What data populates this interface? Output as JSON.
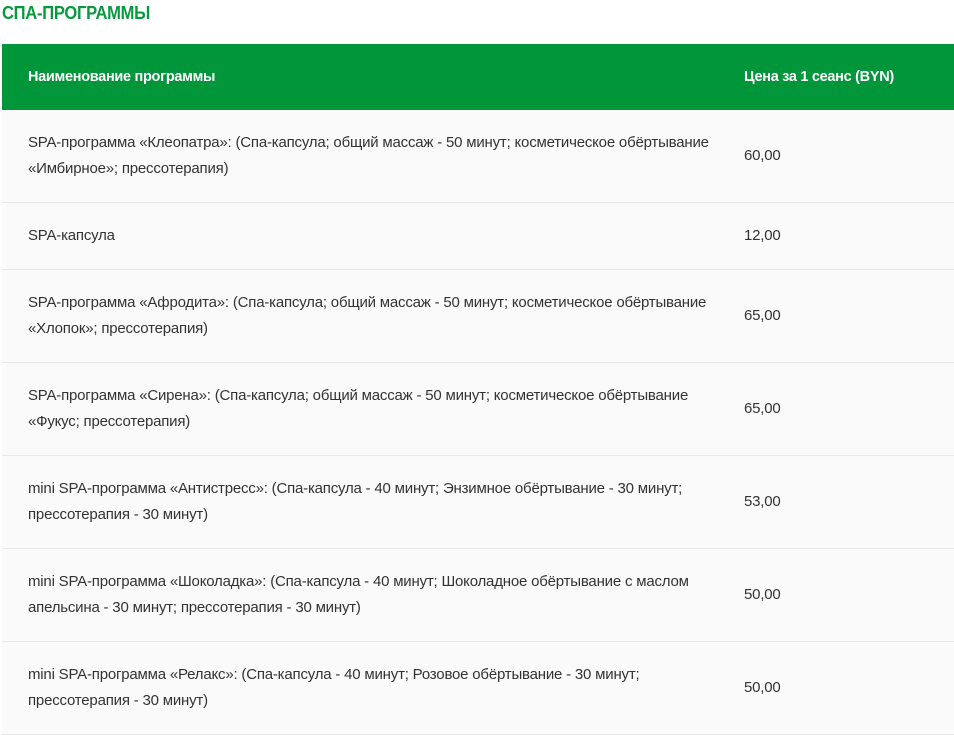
{
  "title": "СПА-ПРОГРАММЫ",
  "table": {
    "headers": [
      "Наименование программы",
      "Цена за 1 сеанс (BYN)"
    ],
    "rows": [
      {
        "name": "SPA-программа «Клеопатра»: (Спа-капсула; общий массаж - 50 минут; косметическое обёртывание «Имбирное»; прессотерапия)",
        "price": "60,00"
      },
      {
        "name": "SPA-капсула",
        "price": "12,00"
      },
      {
        "name": "SPA-программа «Афродита»: (Спа-капсула; общий массаж - 50 минут; косметическое обёртывание «Хлопок»; прессотерапия)",
        "price": "65,00"
      },
      {
        "name": "SPA-программа «Сирена»: (Спа-капсула; общий массаж - 50 минут; косметическое обёртывание «Фукус; прессотерапия)",
        "price": "65,00"
      },
      {
        "name": "mini SPA-программа «Антистресс»: (Спа-капсула - 40 минут; Энзимное обёртывание - 30 минут; прессотерапия - 30 минут)",
        "price": "53,00"
      },
      {
        "name": "mini SPA-программа «Шоколадка»: (Спа-капсула - 40 минут; Шоколадное обёртывание с маслом апельсина - 30 минут; прессотерапия - 30 минут)",
        "price": "50,00"
      },
      {
        "name": "mini SPA-программа «Релакс»: (Спа-капсула - 40 минут; Розовое обёртывание - 30 минут; прессотерапия - 30 минут)",
        "price": "50,00"
      }
    ]
  },
  "colors": {
    "accent": "#009639",
    "title": "#079a3d"
  }
}
